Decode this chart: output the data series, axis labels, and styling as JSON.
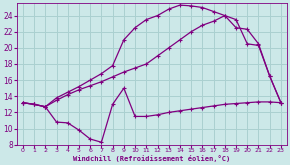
{
  "xlabel": "Windchill (Refroidissement éolien,°C)",
  "bg_color": "#cce8e8",
  "grid_color": "#aad0d0",
  "line_color": "#800080",
  "xlim": [
    -0.5,
    23.5
  ],
  "ylim": [
    8,
    25.5
  ],
  "yticks": [
    8,
    10,
    12,
    14,
    16,
    18,
    20,
    22,
    24
  ],
  "xticks": [
    0,
    1,
    2,
    3,
    4,
    5,
    6,
    7,
    8,
    9,
    10,
    11,
    12,
    13,
    14,
    15,
    16,
    17,
    18,
    19,
    20,
    21,
    22,
    23
  ],
  "line1_x": [
    0,
    1,
    2,
    3,
    4,
    5,
    6,
    7,
    8,
    9,
    10,
    11,
    12,
    13,
    14,
    15,
    16,
    17,
    18,
    19,
    20,
    21,
    22,
    23
  ],
  "line1_y": [
    13.2,
    13.0,
    12.7,
    10.8,
    10.7,
    9.8,
    8.7,
    8.3,
    13.0,
    15.0,
    11.5,
    11.5,
    11.7,
    12.0,
    12.2,
    12.4,
    12.6,
    12.8,
    13.0,
    13.1,
    13.2,
    13.3,
    13.3,
    13.2
  ],
  "line2_x": [
    0,
    1,
    2,
    3,
    4,
    5,
    6,
    7,
    8,
    9,
    10,
    11,
    12,
    13,
    14,
    15,
    16,
    17,
    18,
    19,
    20,
    21,
    22,
    23
  ],
  "line2_y": [
    13.2,
    13.0,
    12.7,
    13.5,
    14.2,
    14.8,
    15.3,
    15.8,
    16.4,
    17.0,
    17.5,
    18.0,
    19.0,
    20.0,
    21.0,
    22.0,
    22.8,
    23.3,
    24.0,
    22.5,
    22.3,
    20.5,
    16.5,
    13.2
  ],
  "line3_x": [
    0,
    1,
    2,
    3,
    4,
    5,
    6,
    7,
    8,
    9,
    10,
    11,
    12,
    13,
    14,
    15,
    16,
    17,
    18,
    19,
    20,
    21,
    22,
    23
  ],
  "line3_y": [
    13.2,
    13.0,
    12.7,
    13.8,
    14.5,
    15.2,
    16.0,
    16.8,
    17.8,
    21.0,
    22.5,
    23.5,
    24.0,
    24.8,
    25.3,
    25.2,
    25.0,
    24.5,
    24.0,
    23.5,
    20.5,
    20.3,
    16.5,
    13.2
  ]
}
